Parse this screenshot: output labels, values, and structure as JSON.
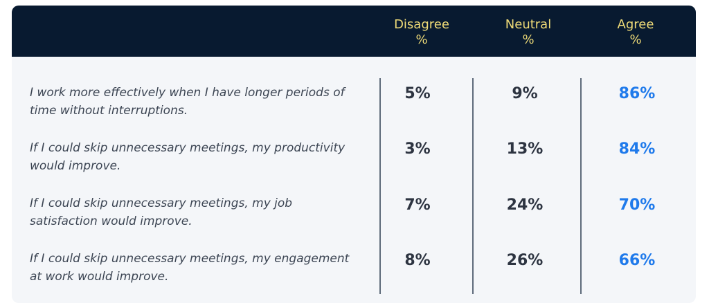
{
  "chart_data": {
    "type": "table",
    "columns": [
      {
        "key": "disagree",
        "label": "Disagree",
        "unit": "%"
      },
      {
        "key": "neutral",
        "label": "Neutral",
        "unit": "%"
      },
      {
        "key": "agree",
        "label": "Agree",
        "unit": "%"
      }
    ],
    "rows": [
      {
        "statement": "I work more effectively when I have longer periods of time without interruptions.",
        "disagree": "5%",
        "neutral": "9%",
        "agree": "86%"
      },
      {
        "statement": "If I could skip unnecessary meetings, my productivity would improve.",
        "disagree": "3%",
        "neutral": "13%",
        "agree": "84%"
      },
      {
        "statement": "If I could skip unnecessary meetings, my job satisfaction would improve.",
        "disagree": "7%",
        "neutral": "24%",
        "agree": "70%"
      },
      {
        "statement": "If I could skip unnecessary meetings, my engagement at work would improve.",
        "disagree": "8%",
        "neutral": "26%",
        "agree": "66%"
      }
    ]
  },
  "colors": {
    "header_bg": "#081a30",
    "header_text": "#f0dc78",
    "body_bg": "#f4f6f9",
    "value_text": "#2d3441",
    "agree_text": "#1f7aeb",
    "divider": "#5e6b7b"
  }
}
